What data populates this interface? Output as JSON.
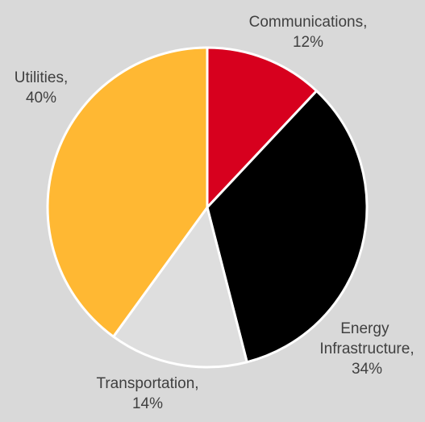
{
  "chart_data": {
    "type": "pie",
    "categories": [
      "Communications,",
      "Energy Infrastructure,",
      "Transportation,",
      "Utilities,"
    ],
    "values": [
      12,
      34,
      14,
      40
    ],
    "value_labels": [
      "12%",
      "34%",
      "14%",
      "40%"
    ],
    "colors": [
      "#d7001e",
      "#000000",
      "#dedede",
      "#ffb833"
    ]
  }
}
